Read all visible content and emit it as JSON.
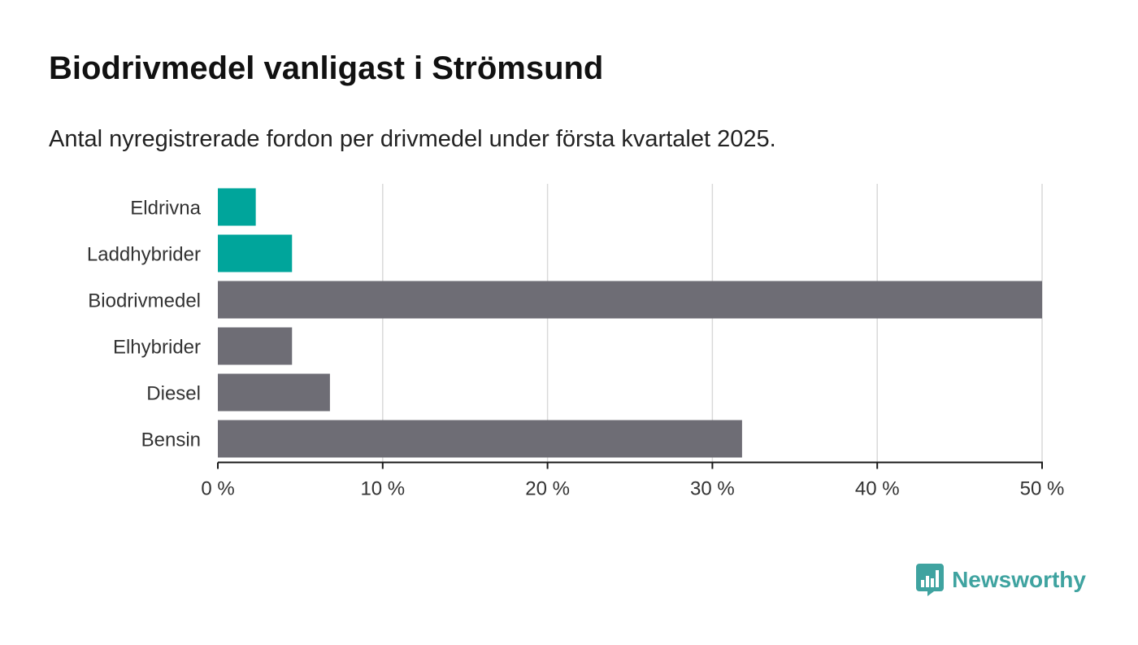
{
  "title": "Biodrivmedel vanligast i Strömsund",
  "subtitle": "Antal nyregistrerade fordon per drivmedel under första kvartalet 2025.",
  "brand": {
    "name": "Newsworthy",
    "icon": "newsworthy-logo-icon"
  },
  "colors": {
    "highlight": "#00a59b",
    "default": "#6e6d75",
    "grid": "#d9d9d9",
    "axis": "#1a1a1a",
    "brand": "#3fa3a0"
  },
  "chart_data": {
    "type": "bar",
    "orientation": "horizontal",
    "categories": [
      "Eldrivna",
      "Laddhybrider",
      "Biodrivmedel",
      "Elhybrider",
      "Diesel",
      "Bensin"
    ],
    "values": [
      2.3,
      4.5,
      50.0,
      4.5,
      6.8,
      31.8
    ],
    "highlighted": [
      true,
      true,
      false,
      false,
      false,
      false
    ],
    "xlim": [
      0,
      50
    ],
    "xticks": [
      0,
      10,
      20,
      30,
      40,
      50
    ],
    "tick_labels": [
      "0 %",
      "10 %",
      "20 %",
      "30 %",
      "40 %",
      "50 %"
    ],
    "grid": true
  }
}
